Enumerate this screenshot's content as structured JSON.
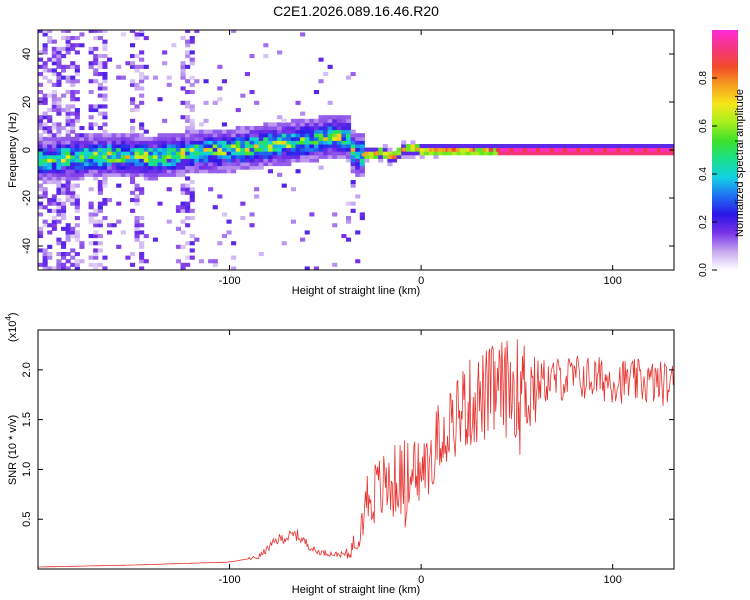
{
  "title": "C2E1.2026.089.16.46.R20",
  "chart_data": [
    {
      "type": "heatmap",
      "name": "spectrogram",
      "xlabel": "Height of straight line (km)",
      "ylabel": "Frequency (Hz)",
      "xlim": [
        -200,
        132
      ],
      "ylim": [
        -50,
        50
      ],
      "x_ticks": [
        -100,
        0,
        100
      ],
      "x_tick_labels": [
        "-100",
        "0",
        "100"
      ],
      "y_ticks": [
        -40,
        -20,
        0,
        20,
        40
      ],
      "y_tick_labels": [
        "-40",
        "-20",
        "0",
        "20",
        "40"
      ],
      "ridge": {
        "x": [
          -200,
          -180,
          -160,
          -140,
          -120,
          -100,
          -80,
          -60,
          -45,
          -38,
          -35,
          -30,
          -20,
          -15,
          -10,
          -5,
          0,
          20,
          40,
          132
        ],
        "y": [
          -4,
          -3,
          -2,
          -3,
          -1,
          0,
          2,
          4,
          6,
          5,
          -1,
          -2,
          -1,
          -3,
          0,
          1,
          0,
          0,
          0,
          0
        ]
      },
      "colorbar": {
        "label": "Normalized spectral amplitude",
        "range": [
          0,
          1
        ],
        "ticks": [
          0.0,
          0.2,
          0.4,
          0.6,
          0.8
        ],
        "tick_labels": [
          "0.0",
          "0.2",
          "0.4",
          "0.6",
          "0.8"
        ],
        "colors": [
          "#ffffff",
          "#c7a9f0",
          "#7a33e8",
          "#2a16e8",
          "#1f6ff2",
          "#12d1e4",
          "#19e08a",
          "#3ee02c",
          "#a8ef1e",
          "#f5e51a",
          "#f7a11f",
          "#f24a2b",
          "#f5367f",
          "#ff2ad8"
        ]
      }
    },
    {
      "type": "line",
      "name": "snr",
      "xlabel": "Height of straight line (km)",
      "ylabel": "SNR (10 * v/v)",
      "multiplier_label": "(x10",
      "multiplier_exponent": "4",
      "multiplier_close": ")",
      "xlim": [
        -200,
        132
      ],
      "ylim": [
        0,
        2.4
      ],
      "x_ticks": [
        -100,
        0,
        100
      ],
      "x_tick_labels": [
        "-100",
        "0",
        "100"
      ],
      "y_ticks": [
        0.5,
        1.0,
        1.5,
        2.0
      ],
      "y_tick_labels": [
        "0.5",
        "1.0",
        "1.5",
        "2.0"
      ],
      "color": "#e8322e",
      "trend": {
        "x": [
          -200,
          -150,
          -100,
          -85,
          -75,
          -65,
          -55,
          -45,
          -38,
          -33,
          -28,
          -20,
          -10,
          0,
          10,
          20,
          40,
          60,
          80,
          100,
          132
        ],
        "y": [
          0.02,
          0.04,
          0.07,
          0.12,
          0.3,
          0.35,
          0.18,
          0.15,
          0.15,
          0.35,
          0.75,
          0.85,
          0.95,
          1.0,
          1.4,
          1.65,
          1.85,
          1.9,
          1.95,
          1.92,
          1.88
        ]
      }
    }
  ]
}
